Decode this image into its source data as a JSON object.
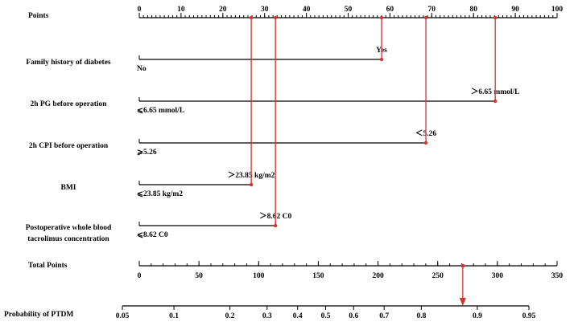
{
  "chart_data": {
    "type": "nomogram",
    "points_axis": {
      "label": "Points",
      "lim": [
        0,
        100
      ],
      "ticks": [
        0,
        10,
        20,
        30,
        40,
        50,
        60,
        70,
        80,
        90,
        100
      ],
      "minor_step": 1
    },
    "variables": [
      {
        "label": [
          "Family history of diabetes"
        ],
        "levels": [
          {
            "label": "No",
            "points": 0
          },
          {
            "label": "Yes",
            "points": 58
          }
        ],
        "selected": 1
      },
      {
        "label": [
          "2h PG before operation"
        ],
        "levels": [
          {
            "label": "⩽6.65 mmol/L",
            "points": 0
          },
          {
            "label": "＞6.65 mmol/L",
            "points": 85.2
          }
        ],
        "selected": 1
      },
      {
        "label": [
          "2h CPI before operation"
        ],
        "levels": [
          {
            "label": "⩾5.26",
            "points": 0
          },
          {
            "label": "＜5.26",
            "points": 68.6
          }
        ],
        "selected": 1
      },
      {
        "label": [
          "BMI"
        ],
        "levels": [
          {
            "label": "⩽23.85 kg/m2",
            "points": 0
          },
          {
            "label": "＞23.85 kg/m2",
            "points": 26.8
          }
        ],
        "selected": 1
      },
      {
        "label": [
          "Postoperative whole blood",
          "tacrolimus concentration"
        ],
        "levels": [
          {
            "label": "⩽8.62 C0",
            "points": 0
          },
          {
            "label": "＞8.62 C0",
            "points": 32.6
          }
        ],
        "selected": 1
      }
    ],
    "total_points_axis": {
      "label": "Total Points",
      "lim": [
        0,
        350
      ],
      "ticks": [
        0,
        50,
        100,
        150,
        200,
        250,
        300,
        350
      ],
      "minor_step": 10,
      "selected": 271
    },
    "probability_axis": {
      "label": "Probability of PTDM",
      "scale": "logit",
      "lim": [
        0.05,
        0.95
      ],
      "ticks": [
        0.05,
        0.1,
        0.2,
        0.3,
        0.4,
        0.5,
        0.6,
        0.7,
        0.8,
        0.9,
        0.95
      ]
    },
    "marker_color": "#d9312b"
  }
}
